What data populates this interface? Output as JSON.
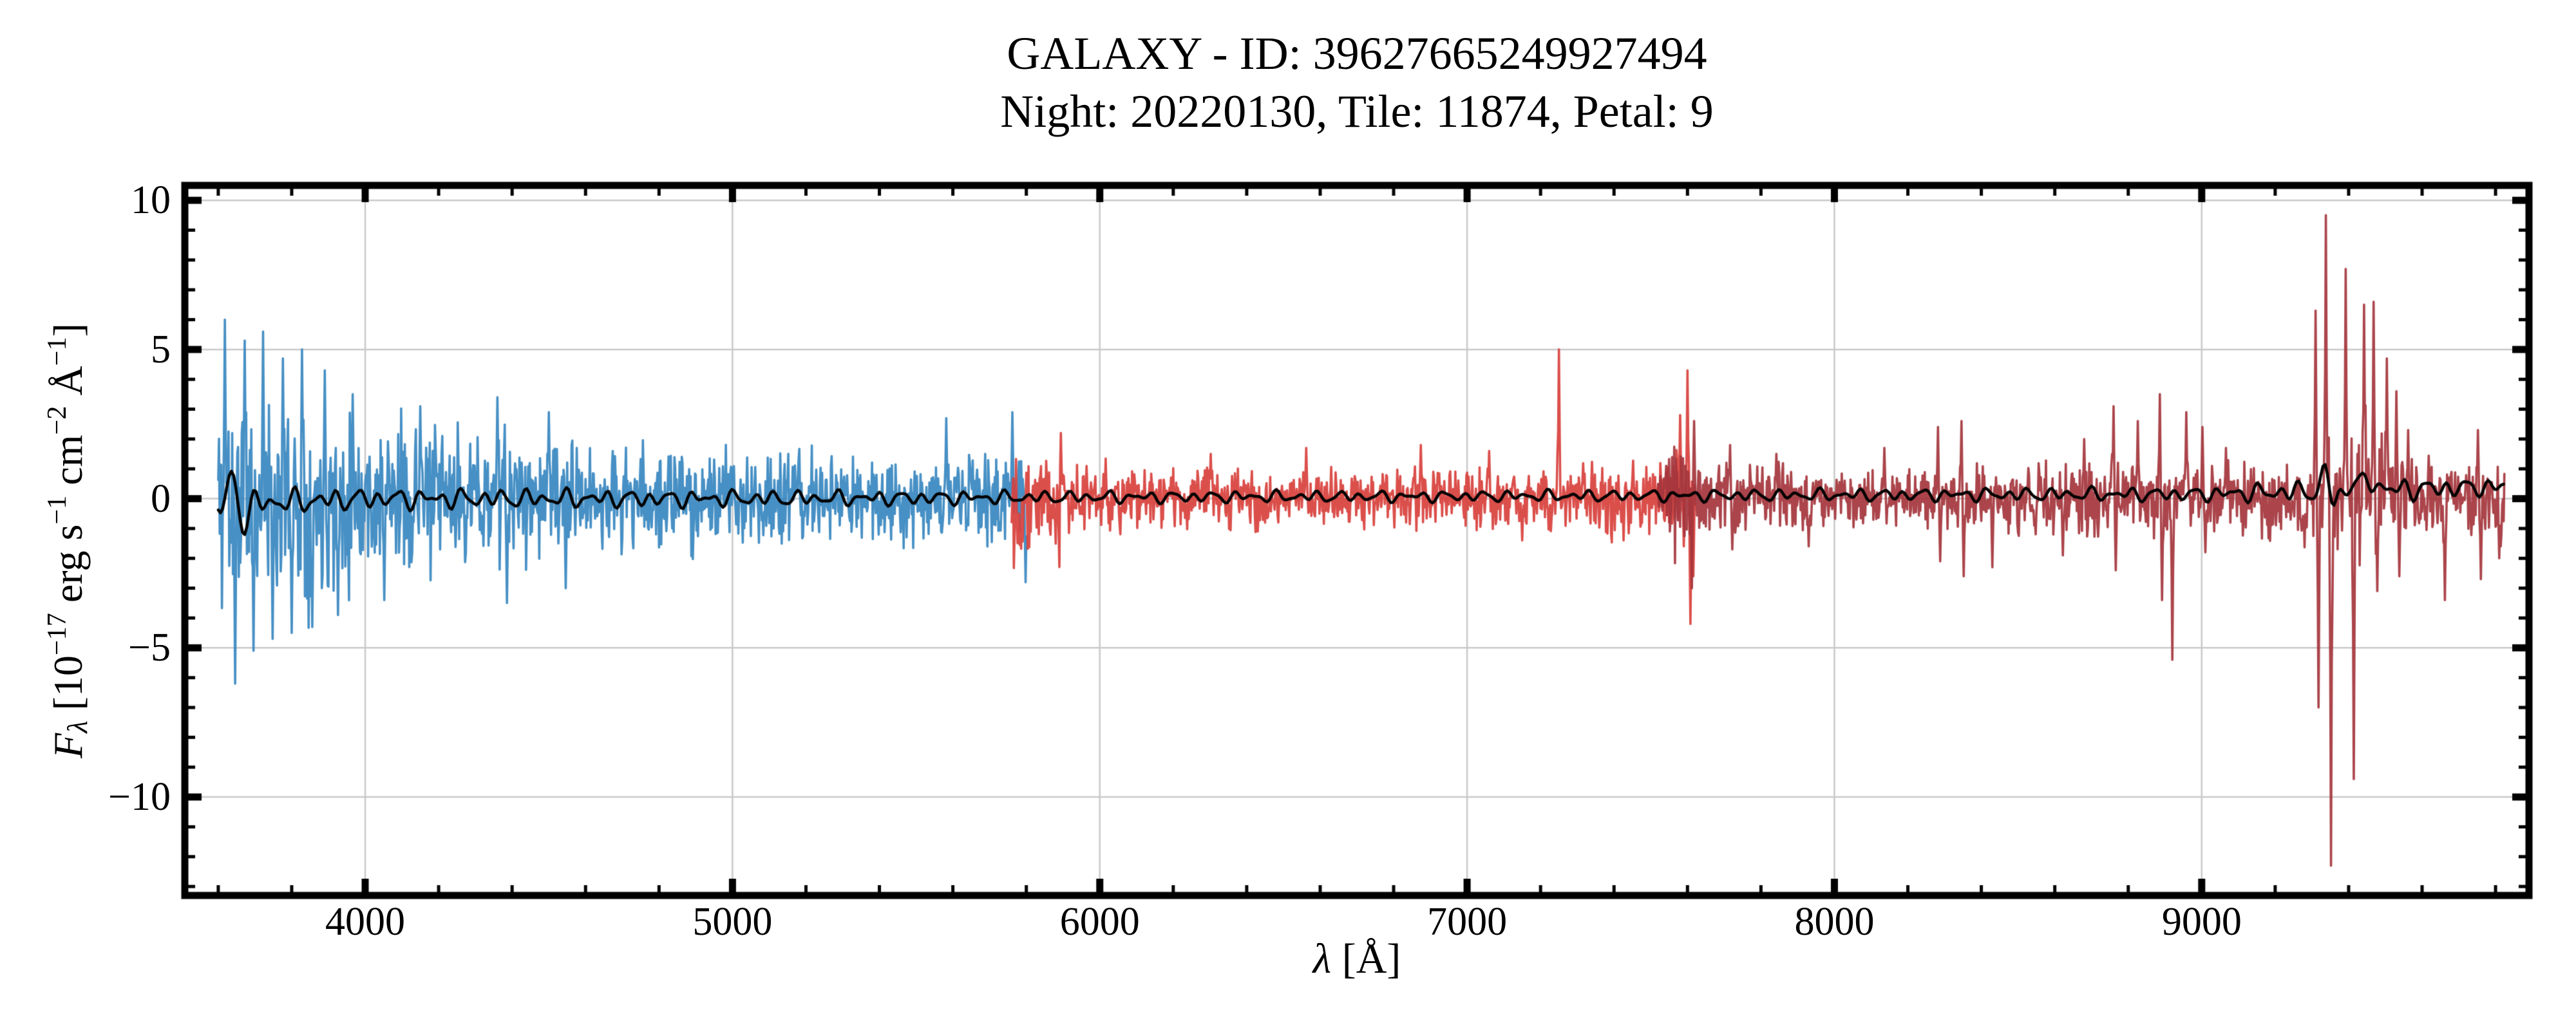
{
  "chart_data": {
    "type": "line",
    "title": "GALAXY - ID: 39627665249927494",
    "subtitle": "Night: 20220130, Tile: 11874, Petal: 9",
    "xlabel": "λ [Å]",
    "ylabel": "F_λ [10^−17 erg s^−1 cm^−2 Å^−1]",
    "xlabel_parts": [
      {
        "t": "λ",
        "s": "it"
      },
      {
        "t": " [Å]"
      }
    ],
    "ylabel_parts": [
      {
        "t": "F",
        "s": "it"
      },
      {
        "t": "λ",
        "s": "subit"
      },
      {
        "t": " [10"
      },
      {
        "t": "−17",
        "s": "sup"
      },
      {
        "t": " erg s"
      },
      {
        "t": "−1",
        "s": "sup"
      },
      {
        "t": " cm"
      },
      {
        "t": "−2",
        "s": "sup"
      },
      {
        "t": " Å"
      },
      {
        "t": "−1",
        "s": "sup"
      },
      {
        "t": "]"
      }
    ],
    "xlim": [
      3509,
      9891
    ],
    "ylim": [
      -13.3,
      10.5
    ],
    "x_major_ticks": [
      {
        "value": 4000,
        "label": "4000"
      },
      {
        "value": 5000,
        "label": "5000"
      },
      {
        "value": 6000,
        "label": "6000"
      },
      {
        "value": 7000,
        "label": "7000"
      },
      {
        "value": 8000,
        "label": "8000"
      },
      {
        "value": 9000,
        "label": "9000"
      }
    ],
    "x_minor_step": 200,
    "y_major_ticks": [
      {
        "value": 10,
        "label": "10"
      },
      {
        "value": 5,
        "label": "5"
      },
      {
        "value": 0,
        "label": "0"
      },
      {
        "value": -5,
        "label": "−5"
      },
      {
        "value": -10,
        "label": "−10"
      }
    ],
    "y_minor_step": 1,
    "grid": true,
    "legend": "none",
    "colors": {
      "background": "#ffffff",
      "grid": "#c9c9c9",
      "axis": "#000000",
      "b_arm": "#3787c0",
      "r_arm": "#d8403c",
      "z_arm": "#a4353c",
      "smooth": "#000000"
    },
    "series": [
      {
        "name": "b-arm-spectrum",
        "color": "#3787c0",
        "seed": 11,
        "range": [
          3600,
          5800
        ],
        "step": 2,
        "sigma_profile": [
          [
            3600,
            2.1
          ],
          [
            3700,
            1.85
          ],
          [
            3800,
            1.6
          ],
          [
            3950,
            1.35
          ],
          [
            4100,
            1.15
          ],
          [
            4300,
            1.0
          ],
          [
            4600,
            0.85
          ],
          [
            5000,
            0.75
          ],
          [
            5400,
            0.68
          ],
          [
            5700,
            0.72
          ],
          [
            5800,
            0.8
          ]
        ],
        "spikes": [
          [
            3618,
            6.0
          ],
          [
            3645,
            -6.2
          ],
          [
            3672,
            5.3
          ],
          [
            3695,
            -5.1
          ],
          [
            3722,
            5.6
          ],
          [
            3748,
            -4.7
          ],
          [
            3775,
            4.7
          ],
          [
            3800,
            -4.5
          ],
          [
            3828,
            5.0
          ],
          [
            3856,
            -4.3
          ],
          [
            3890,
            4.3
          ],
          [
            3925,
            -3.9
          ],
          [
            3965,
            3.5
          ],
          [
            4052,
            -3.4
          ],
          [
            4150,
            3.1
          ],
          [
            4360,
            3.4
          ],
          [
            4385,
            -3.5
          ],
          [
            4500,
            2.9
          ],
          [
            4545,
            -3.0
          ],
          [
            5582,
            2.7
          ],
          [
            5762,
            2.9
          ],
          [
            5797,
            -2.8
          ]
        ]
      },
      {
        "name": "r-arm-spectrum",
        "color": "#d8403c",
        "seed": 22,
        "range": [
          5760,
          7620
        ],
        "step": 2,
        "sigma_profile": [
          [
            5760,
            0.95
          ],
          [
            5900,
            0.62
          ],
          [
            6000,
            0.5
          ],
          [
            6500,
            0.42
          ],
          [
            7000,
            0.46
          ],
          [
            7300,
            0.5
          ],
          [
            7560,
            0.75
          ],
          [
            7620,
            1.1
          ]
        ],
        "spikes": [
          [
            5889,
            -2.6
          ],
          [
            5893,
            2.2
          ],
          [
            6302,
            1.5
          ],
          [
            6562,
            1.7
          ],
          [
            6874,
            1.8
          ],
          [
            7060,
            1.6
          ],
          [
            7150,
            -1.4
          ],
          [
            7250,
            5.0
          ],
          [
            7580,
            2.8
          ],
          [
            7600,
            4.3
          ],
          [
            7607,
            -4.2
          ],
          [
            7616,
            -2.6
          ],
          [
            7622,
            3.0
          ]
        ]
      },
      {
        "name": "z-arm-spectrum",
        "color": "#a4353c",
        "seed": 33,
        "range": [
          7520,
          9824
        ],
        "step": 2,
        "sigma_profile": [
          [
            7520,
            0.6
          ],
          [
            7600,
            0.95
          ],
          [
            7700,
            0.55
          ],
          [
            8000,
            0.45
          ],
          [
            8400,
            0.5
          ],
          [
            8800,
            0.62
          ],
          [
            9050,
            0.55
          ],
          [
            9250,
            0.55
          ],
          [
            9350,
            1.05
          ],
          [
            9450,
            0.95
          ],
          [
            9550,
            0.75
          ],
          [
            9650,
            0.5
          ],
          [
            9824,
            0.62
          ]
        ],
        "spikes": [
          [
            7612,
            -3.0
          ],
          [
            7618,
            2.6
          ],
          [
            7715,
            1.8
          ],
          [
            7722,
            -1.7
          ],
          [
            7842,
            1.5
          ],
          [
            7930,
            -1.6
          ],
          [
            8135,
            1.7
          ],
          [
            8282,
            2.4
          ],
          [
            8288,
            -2.1
          ],
          [
            8345,
            2.6
          ],
          [
            8352,
            -2.6
          ],
          [
            8430,
            -2.3
          ],
          [
            8622,
            -1.9
          ],
          [
            8680,
            2.0
          ],
          [
            8760,
            3.1
          ],
          [
            8766,
            -2.4
          ],
          [
            8826,
            2.6
          ],
          [
            8886,
            3.5
          ],
          [
            8892,
            -3.4
          ],
          [
            8920,
            -5.4
          ],
          [
            8958,
            2.9
          ],
          [
            9002,
            2.4
          ],
          [
            9010,
            -1.8
          ],
          [
            9066,
            1.7
          ],
          [
            9310,
            6.3
          ],
          [
            9318,
            -7.0
          ],
          [
            9338,
            9.5
          ],
          [
            9352,
            -12.3
          ],
          [
            9392,
            7.7
          ],
          [
            9414,
            -9.4
          ],
          [
            9442,
            6.5
          ],
          [
            9468,
            6.6
          ],
          [
            9477,
            -3.1
          ],
          [
            9504,
            4.7
          ],
          [
            9530,
            3.6
          ],
          [
            9538,
            -2.6
          ],
          [
            9562,
            2.3
          ],
          [
            9662,
            -3.4
          ],
          [
            9752,
            2.3
          ],
          [
            9760,
            -2.7
          ],
          [
            9810,
            -2.0
          ]
        ]
      }
    ],
    "smooth_line": {
      "name": "smoothed-spectrum",
      "color": "#000000",
      "range": [
        3600,
        9824
      ],
      "step": 6,
      "trend": [
        [
          3600,
          -0.2
        ],
        [
          4000,
          0.0
        ],
        [
          5000,
          0.0
        ],
        [
          6000,
          0.05
        ],
        [
          7000,
          0.08
        ],
        [
          8000,
          0.12
        ],
        [
          9000,
          0.15
        ],
        [
          9500,
          0.3
        ],
        [
          9824,
          0.4
        ]
      ],
      "wiggle_amp": [
        [
          3600,
          0.5
        ],
        [
          4000,
          0.38
        ],
        [
          5000,
          0.3
        ],
        [
          6000,
          0.22
        ],
        [
          7000,
          0.2
        ],
        [
          8000,
          0.22
        ],
        [
          9000,
          0.26
        ],
        [
          9400,
          0.45
        ],
        [
          9824,
          0.3
        ]
      ],
      "features": [
        [
          3640,
          0.9
        ],
        [
          3668,
          -0.7
        ],
        [
          9340,
          0.75
        ],
        [
          9358,
          -0.55
        ],
        [
          9420,
          0.45
        ],
        [
          9470,
          0.35
        ]
      ]
    }
  }
}
